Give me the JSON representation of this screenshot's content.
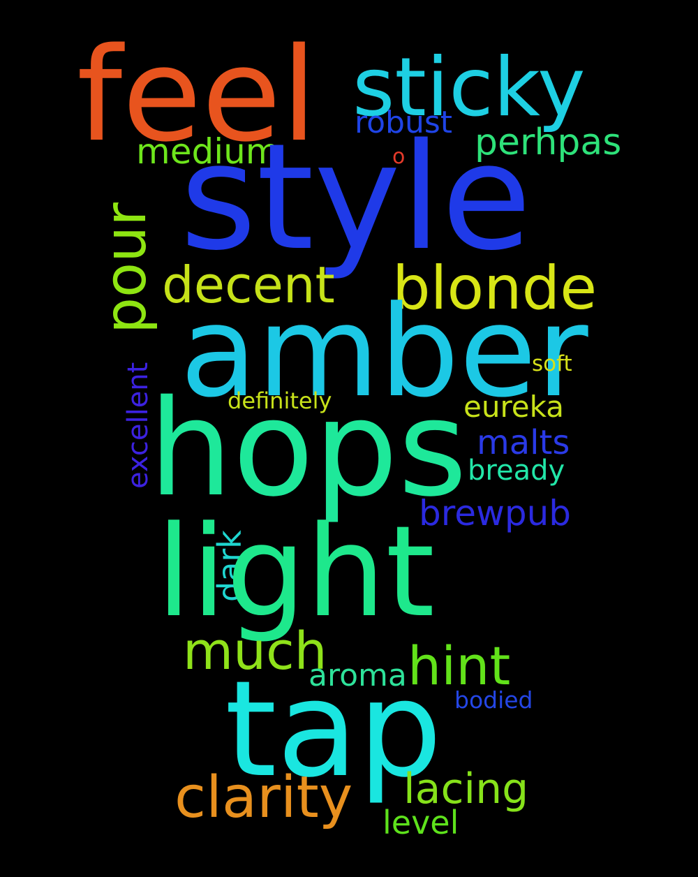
{
  "word_cloud": {
    "background": "#000000",
    "words": [
      {
        "text": "feel",
        "color": "#e8541e"
      },
      {
        "text": "sticky",
        "color": "#1ecfe3"
      },
      {
        "text": "robust",
        "color": "#1f44e6"
      },
      {
        "text": "medium",
        "color": "#6ee61c"
      },
      {
        "text": "perhpas",
        "color": "#2ee27a"
      },
      {
        "text": "o",
        "color": "#e53a2a"
      },
      {
        "text": "style",
        "color": "#1f3ae8"
      },
      {
        "text": "pour",
        "color": "#8ee512"
      },
      {
        "text": "decent",
        "color": "#c6e219"
      },
      {
        "text": "blonde",
        "color": "#d8e516"
      },
      {
        "text": "amber",
        "color": "#1cc8e5"
      },
      {
        "text": "soft",
        "color": "#d6e01a"
      },
      {
        "text": "excellent",
        "color": "#3c22e0"
      },
      {
        "text": "definitely",
        "color": "#c8e21a"
      },
      {
        "text": "eureka",
        "color": "#c8e21a"
      },
      {
        "text": "hops",
        "color": "#1ee89a"
      },
      {
        "text": "malts",
        "color": "#2a3ae6"
      },
      {
        "text": "bready",
        "color": "#22e6a8"
      },
      {
        "text": "brewpub",
        "color": "#2b2ae0"
      },
      {
        "text": "dark",
        "color": "#1fd6d0"
      },
      {
        "text": "light",
        "color": "#1ee88c"
      },
      {
        "text": "much",
        "color": "#8fe21a"
      },
      {
        "text": "hint",
        "color": "#62e21a"
      },
      {
        "text": "aroma",
        "color": "#2ee29a"
      },
      {
        "text": "bodied",
        "color": "#2446e6"
      },
      {
        "text": "tap",
        "color": "#1ae6e0"
      },
      {
        "text": "clarity",
        "color": "#e8901e"
      },
      {
        "text": "lacing",
        "color": "#86e21a"
      },
      {
        "text": "level",
        "color": "#5ee21c"
      }
    ]
  }
}
